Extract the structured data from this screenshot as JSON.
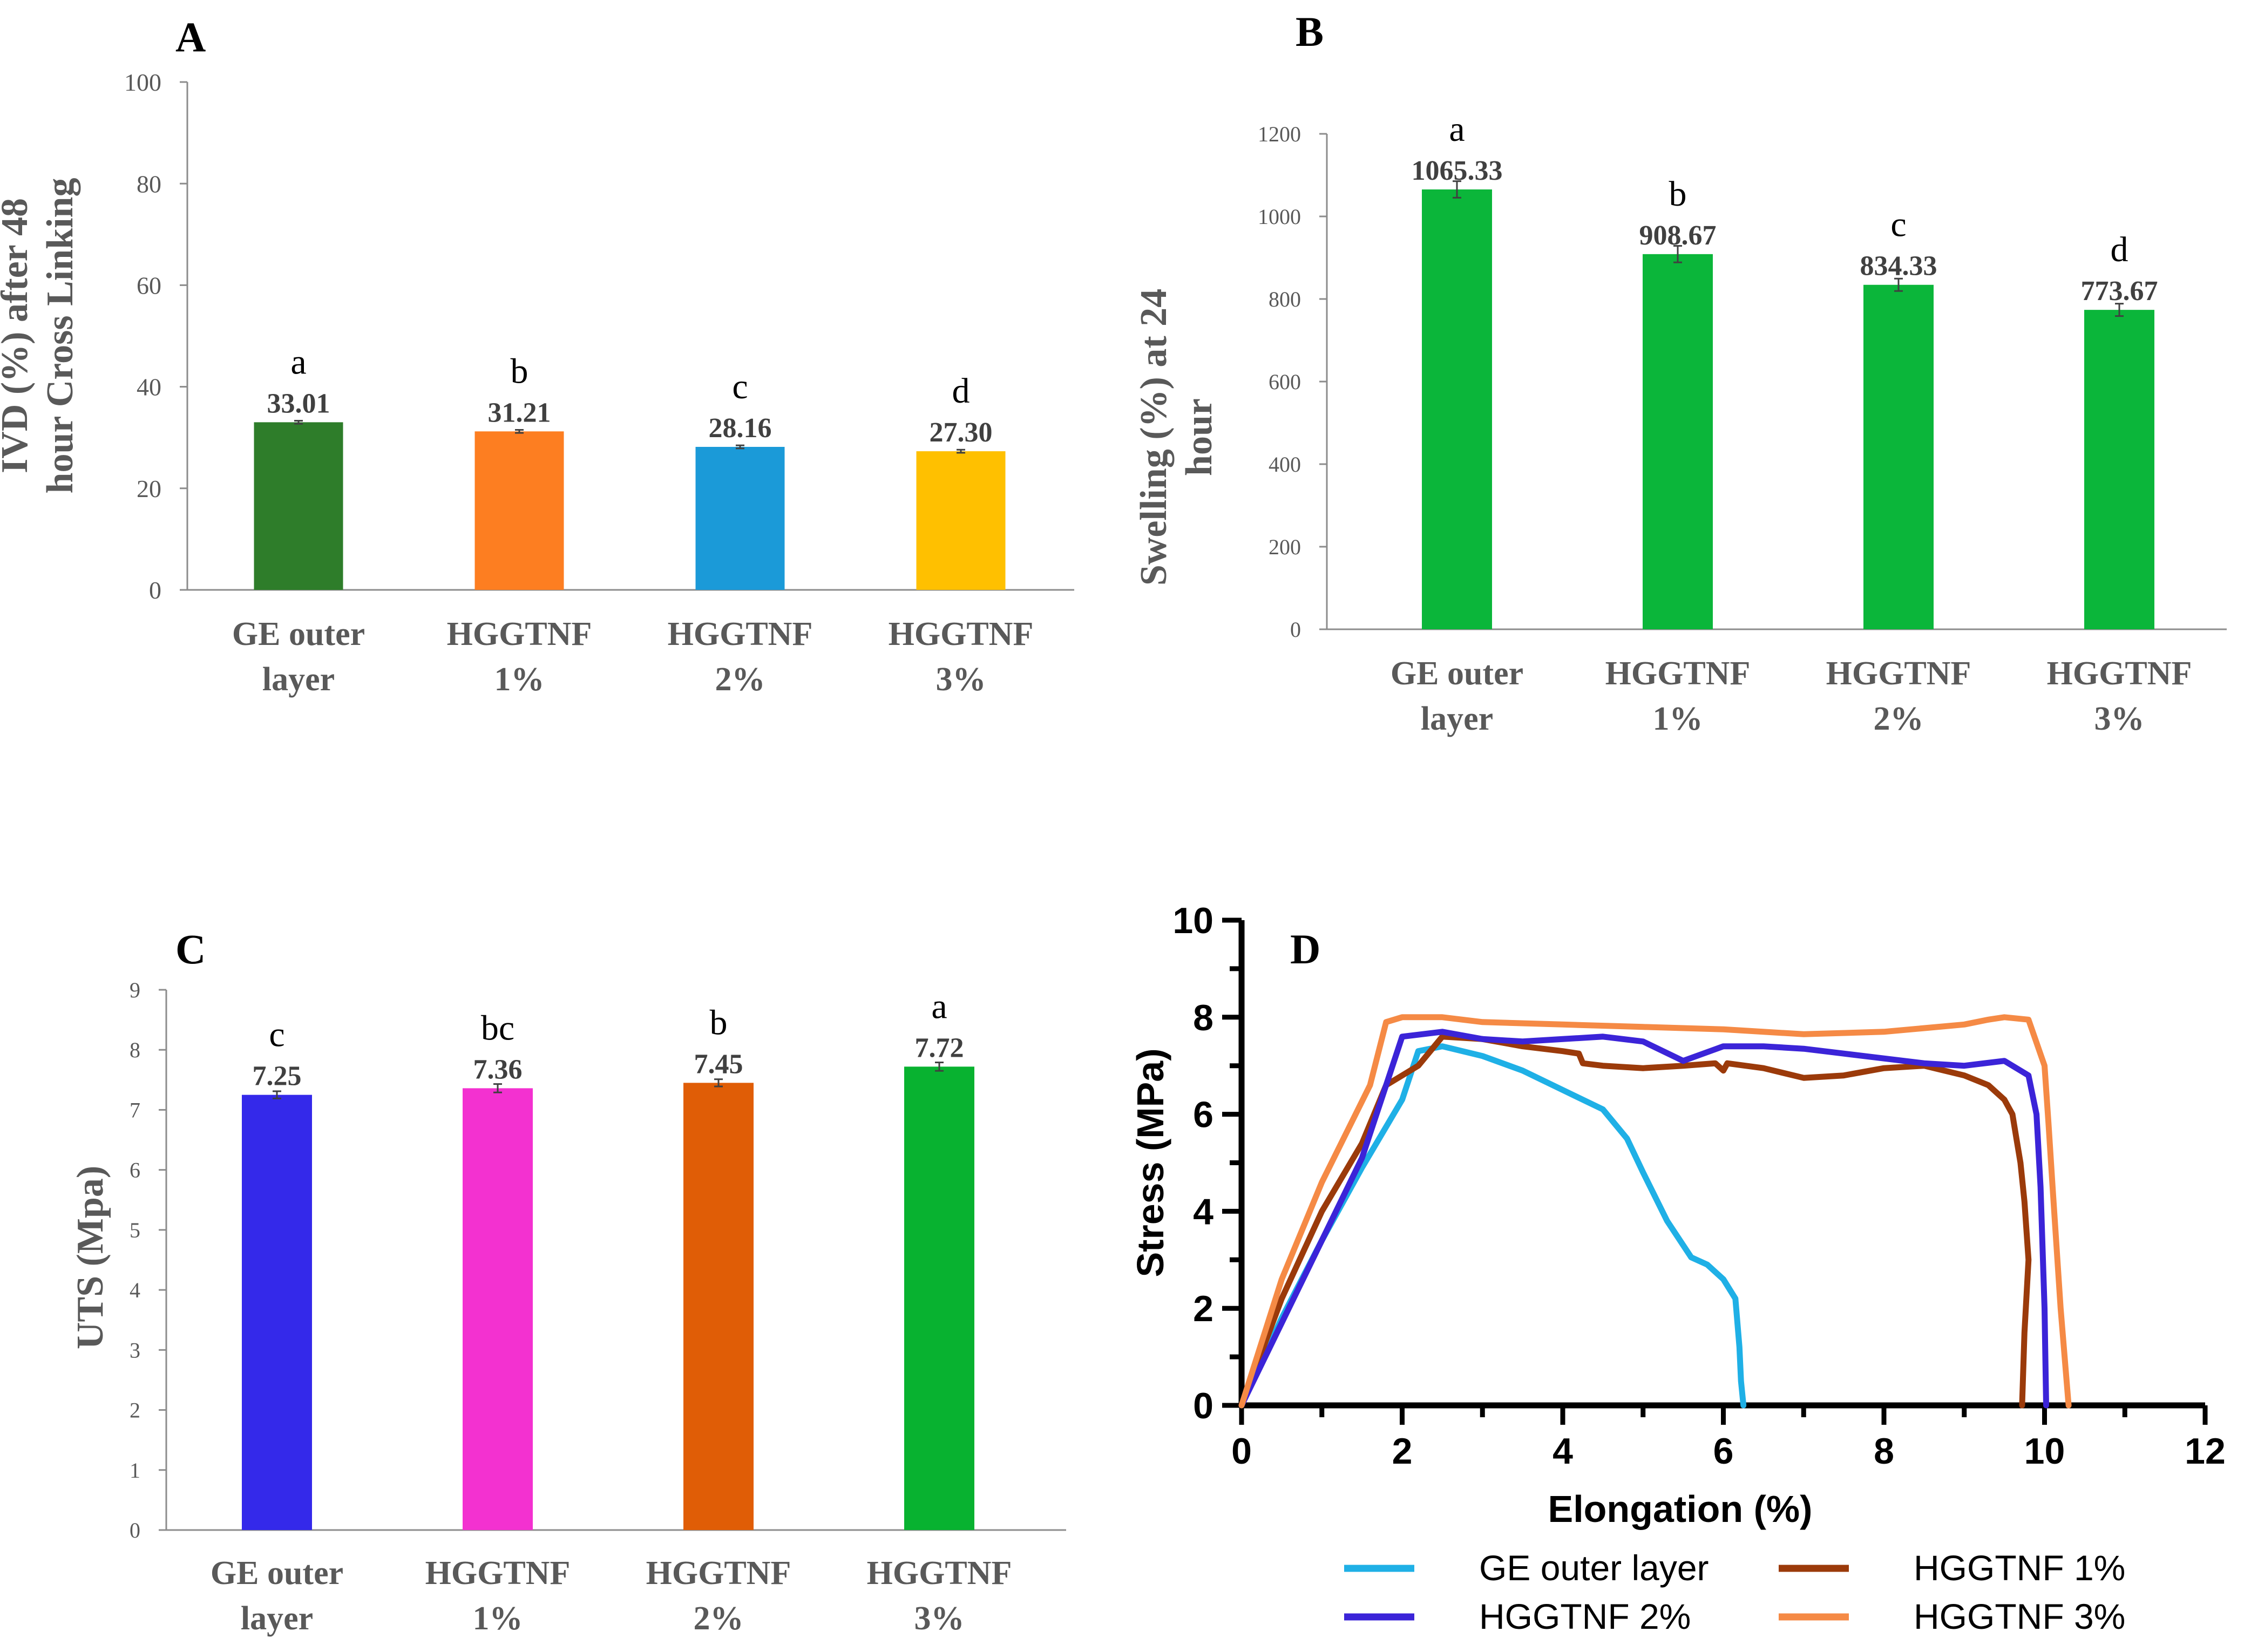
{
  "chart_data": [
    {
      "panel": "A",
      "type": "bar",
      "title": "",
      "ylabel": "IVD (%) after 48 hour Cross Linking",
      "ylabel_lines": [
        "IVD (%) after 48",
        "hour Cross Linking"
      ],
      "xlabel": "",
      "ylim": [
        0,
        100
      ],
      "yticks": [
        0,
        20,
        40,
        60,
        80,
        100
      ],
      "categories": [
        [
          "GE outer",
          "layer"
        ],
        [
          "HGGTNF",
          "1%"
        ],
        [
          "HGGTNF",
          "2%"
        ],
        [
          "HGGTNF",
          "3%"
        ]
      ],
      "values": [
        33.01,
        31.21,
        28.16,
        27.3
      ],
      "value_labels": [
        "33.01",
        "31.21",
        "28.16",
        "27.30"
      ],
      "errors": [
        0.3,
        0.3,
        0.3,
        0.3
      ],
      "letters": [
        "a",
        "b",
        "c",
        "d"
      ],
      "colors": [
        "#2e7d2a",
        "#fd7e21",
        "#1b9ad8",
        "#ffc000"
      ]
    },
    {
      "panel": "B",
      "type": "bar",
      "title": "",
      "ylabel": "Swelling (%) at 24 hour",
      "ylabel_lines": [
        "Swelling (%) at 24",
        "hour"
      ],
      "xlabel": "",
      "ylim": [
        0,
        1200
      ],
      "yticks": [
        0,
        200,
        400,
        600,
        800,
        1000,
        1200
      ],
      "categories": [
        [
          "GE outer",
          "layer"
        ],
        [
          "HGGTNF",
          "1%"
        ],
        [
          "HGGTNF",
          "2%"
        ],
        [
          "HGGTNF",
          "3%"
        ]
      ],
      "values": [
        1065.33,
        908.67,
        834.33,
        773.67
      ],
      "value_labels": [
        "1065.33",
        "908.67",
        "834.33",
        "773.67"
      ],
      "errors": [
        20,
        20,
        15,
        15
      ],
      "letters": [
        "a",
        "b",
        "c",
        "d"
      ],
      "colors": [
        "#0bb63a",
        "#0bb63a",
        "#0bb63a",
        "#0bb63a"
      ]
    },
    {
      "panel": "C",
      "type": "bar",
      "title": "",
      "ylabel": "UTS (Mpa)",
      "ylabel_lines": [
        "UTS (Mpa)"
      ],
      "xlabel": "",
      "ylim": [
        0,
        9
      ],
      "yticks": [
        0,
        1,
        2,
        3,
        4,
        5,
        6,
        7,
        8,
        9
      ],
      "categories": [
        [
          "GE outer",
          "layer"
        ],
        [
          "HGGTNF",
          "1%"
        ],
        [
          "HGGTNF",
          "2%"
        ],
        [
          "HGGTNF",
          "3%"
        ]
      ],
      "values": [
        7.25,
        7.36,
        7.45,
        7.72
      ],
      "value_labels": [
        "7.25",
        "7.36",
        "7.45",
        "7.72"
      ],
      "errors": [
        0.06,
        0.07,
        0.06,
        0.07
      ],
      "letters": [
        "c",
        "bc",
        "b",
        "a"
      ],
      "colors": [
        "#3429ea",
        "#f331d0",
        "#e05d06",
        "#08b230"
      ]
    },
    {
      "panel": "D",
      "type": "line",
      "title": "",
      "xlabel": "Elongation (%)",
      "ylabel": "Stress (MPa)",
      "xlim": [
        0,
        12
      ],
      "ylim": [
        0,
        10
      ],
      "xticks": [
        0,
        2,
        4,
        6,
        8,
        10,
        12
      ],
      "yticks": [
        0,
        2,
        4,
        6,
        8,
        10
      ],
      "legend_position": "bottom",
      "series": [
        {
          "name": "GE outer layer",
          "color": "#1fb0e6",
          "x": [
            0,
            0.5,
            1.0,
            1.5,
            2.0,
            2.2,
            2.5,
            3.0,
            3.5,
            4.0,
            4.5,
            4.8,
            5.0,
            5.3,
            5.6,
            5.8,
            6.0,
            6.15,
            6.2,
            6.22,
            6.25
          ],
          "y": [
            0,
            1.8,
            3.4,
            4.9,
            6.3,
            7.3,
            7.4,
            7.2,
            6.9,
            6.5,
            6.1,
            5.5,
            4.8,
            3.8,
            3.05,
            2.9,
            2.6,
            2.2,
            1.2,
            0.5,
            0
          ]
        },
        {
          "name": "HGGTNF 1%",
          "color": "#9b3a0a",
          "x": [
            0,
            0.5,
            1.0,
            1.5,
            1.8,
            2.2,
            2.5,
            3.0,
            3.5,
            4.0,
            4.2,
            4.25,
            4.5,
            5.0,
            5.5,
            5.9,
            6.0,
            6.05,
            6.5,
            7.0,
            7.5,
            8.0,
            8.5,
            9.0,
            9.3,
            9.5,
            9.6,
            9.65,
            9.7,
            9.75,
            9.8,
            9.75,
            9.72
          ],
          "y": [
            0,
            2.2,
            4.0,
            5.4,
            6.6,
            7.0,
            7.6,
            7.55,
            7.4,
            7.3,
            7.25,
            7.05,
            7.0,
            6.95,
            7.0,
            7.05,
            6.9,
            7.05,
            6.95,
            6.75,
            6.8,
            6.95,
            7.0,
            6.8,
            6.6,
            6.3,
            6.0,
            5.5,
            5.0,
            4.2,
            3.0,
            1.5,
            0
          ]
        },
        {
          "name": "HGGTNF 2%",
          "color": "#3b24d8",
          "x": [
            0,
            0.5,
            1.0,
            1.5,
            1.8,
            2.0,
            2.5,
            3.0,
            3.5,
            4.0,
            4.5,
            5.0,
            5.5,
            6.0,
            6.5,
            7.0,
            7.5,
            8.0,
            8.5,
            9.0,
            9.5,
            9.8,
            9.9,
            9.95,
            10.0,
            10.02
          ],
          "y": [
            0,
            1.7,
            3.4,
            5.1,
            6.6,
            7.6,
            7.7,
            7.55,
            7.5,
            7.55,
            7.6,
            7.5,
            7.1,
            7.4,
            7.4,
            7.35,
            7.25,
            7.15,
            7.05,
            7.0,
            7.1,
            6.8,
            6.0,
            4.5,
            2.0,
            0
          ]
        },
        {
          "name": "HGGTNF 3%",
          "color": "#f58a45",
          "x": [
            0,
            0.5,
            1.0,
            1.3,
            1.6,
            1.8,
            2.0,
            2.5,
            3.0,
            4.0,
            5.0,
            6.0,
            7.0,
            8.0,
            9.0,
            9.3,
            9.5,
            9.8,
            10.0,
            10.05,
            10.1,
            10.2,
            10.3
          ],
          "y": [
            0,
            2.6,
            4.6,
            5.6,
            6.6,
            7.9,
            8.0,
            8.0,
            7.9,
            7.85,
            7.8,
            7.75,
            7.65,
            7.7,
            7.85,
            7.95,
            8.0,
            7.95,
            7.0,
            5.8,
            4.5,
            2.0,
            0
          ]
        }
      ],
      "legend_order": [
        "GE outer layer",
        "HGGTNF 1%",
        "HGGTNF 2%",
        "HGGTNF 3%"
      ]
    }
  ]
}
